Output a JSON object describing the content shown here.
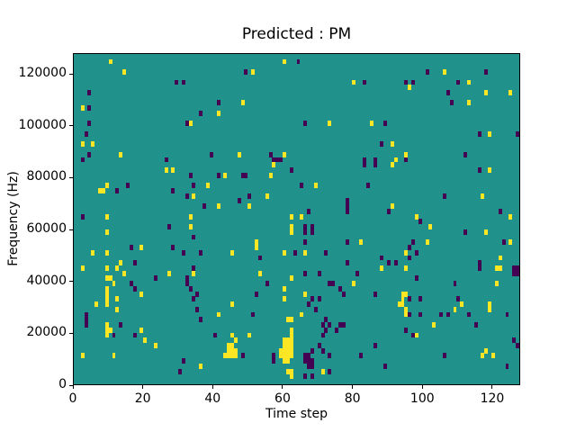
{
  "chart_data": {
    "type": "heatmap",
    "title": "Predicted : PM",
    "xlabel": "Time step",
    "ylabel": "Frequency (Hz)",
    "xlim": [
      0,
      128
    ],
    "ylim": [
      0,
      128000
    ],
    "x_ticks": [
      0,
      20,
      40,
      60,
      80,
      100,
      120
    ],
    "y_ticks": [
      0,
      20000,
      40000,
      60000,
      80000,
      100000,
      120000
    ],
    "grid": {
      "cols": 128,
      "rows": 64
    },
    "colormap": "viridis",
    "colors": {
      "background": "#21918c",
      "yellow": "#fde725",
      "purple": "#440154",
      "spine": "#000000",
      "figure_bg": "#ffffff"
    },
    "cells": {
      "yellow": [
        [
          10,
          62
        ],
        [
          14,
          60
        ],
        [
          2,
          53
        ],
        [
          2,
          46
        ],
        [
          5,
          46
        ],
        [
          13,
          44
        ],
        [
          60,
          62
        ],
        [
          51,
          60
        ],
        [
          48,
          54
        ],
        [
          41,
          52
        ],
        [
          33,
          50
        ],
        [
          47,
          44
        ],
        [
          60,
          44
        ],
        [
          80,
          58
        ],
        [
          73,
          50
        ],
        [
          85,
          50
        ],
        [
          91,
          46
        ],
        [
          95,
          44
        ],
        [
          92,
          43
        ],
        [
          106,
          60
        ],
        [
          96,
          57
        ],
        [
          113,
          58
        ],
        [
          118,
          56
        ],
        [
          125,
          56
        ],
        [
          113,
          54
        ],
        [
          119,
          48
        ],
        [
          26,
          41
        ],
        [
          28,
          41
        ],
        [
          9,
          38
        ],
        [
          7,
          37
        ],
        [
          8,
          37
        ],
        [
          9,
          32
        ],
        [
          9,
          29
        ],
        [
          19,
          26
        ],
        [
          5,
          25
        ],
        [
          9,
          25
        ],
        [
          2,
          22
        ],
        [
          9,
          22
        ],
        [
          13,
          23
        ],
        [
          14,
          21
        ],
        [
          57,
          42
        ],
        [
          38,
          38
        ],
        [
          43,
          40
        ],
        [
          56,
          40
        ],
        [
          34,
          36
        ],
        [
          55,
          36
        ],
        [
          41,
          34
        ],
        [
          50,
          34
        ],
        [
          33,
          32
        ],
        [
          33,
          30
        ],
        [
          62,
          32
        ],
        [
          65,
          32
        ],
        [
          62,
          30
        ],
        [
          62,
          29
        ],
        [
          52,
          27
        ],
        [
          52,
          26
        ],
        [
          60,
          25
        ],
        [
          45,
          25
        ],
        [
          53,
          21
        ],
        [
          91,
          42
        ],
        [
          69,
          38
        ],
        [
          91,
          34
        ],
        [
          82,
          27
        ],
        [
          95,
          25
        ],
        [
          95,
          22
        ],
        [
          88,
          22
        ],
        [
          66,
          25
        ],
        [
          119,
          41
        ],
        [
          117,
          36
        ],
        [
          98,
          32
        ],
        [
          102,
          30
        ],
        [
          125,
          32
        ],
        [
          118,
          29
        ],
        [
          101,
          27
        ],
        [
          125,
          27
        ],
        [
          122,
          24
        ],
        [
          121,
          22
        ],
        [
          122,
          22
        ],
        [
          12,
          22
        ],
        [
          9,
          20
        ],
        [
          10,
          20
        ],
        [
          11,
          19
        ],
        [
          27,
          21
        ],
        [
          19,
          17
        ],
        [
          9,
          18
        ],
        [
          9,
          17
        ],
        [
          9,
          16
        ],
        [
          9,
          15
        ],
        [
          6,
          15
        ],
        [
          12,
          16
        ],
        [
          12,
          14
        ],
        [
          9,
          11
        ],
        [
          9,
          10
        ],
        [
          10,
          10
        ],
        [
          9,
          9
        ],
        [
          19,
          10
        ],
        [
          20,
          8
        ],
        [
          23,
          7
        ],
        [
          2,
          5
        ],
        [
          11,
          5
        ],
        [
          34,
          21
        ],
        [
          62,
          20
        ],
        [
          60,
          18
        ],
        [
          60,
          16
        ],
        [
          45,
          15
        ],
        [
          41,
          13
        ],
        [
          65,
          13
        ],
        [
          45,
          9
        ],
        [
          46,
          8
        ],
        [
          50,
          9
        ],
        [
          36,
          3
        ],
        [
          44,
          7
        ],
        [
          45,
          7
        ],
        [
          44,
          6
        ],
        [
          45,
          6
        ],
        [
          46,
          6
        ],
        [
          43,
          5
        ],
        [
          44,
          5
        ],
        [
          45,
          5
        ],
        [
          46,
          5
        ],
        [
          61,
          12
        ],
        [
          62,
          12
        ],
        [
          62,
          10
        ],
        [
          62,
          9
        ],
        [
          60,
          8
        ],
        [
          61,
          8
        ],
        [
          62,
          8
        ],
        [
          60,
          7
        ],
        [
          61,
          7
        ],
        [
          62,
          7
        ],
        [
          59,
          6
        ],
        [
          60,
          6
        ],
        [
          61,
          6
        ],
        [
          62,
          6
        ],
        [
          59,
          5
        ],
        [
          60,
          5
        ],
        [
          61,
          5
        ],
        [
          62,
          5
        ],
        [
          60,
          4
        ],
        [
          61,
          4
        ],
        [
          61,
          2
        ],
        [
          62,
          2
        ],
        [
          62,
          1
        ],
        [
          80,
          19
        ],
        [
          66,
          17
        ],
        [
          94,
          17
        ],
        [
          95,
          17
        ],
        [
          94,
          16
        ],
        [
          93,
          15
        ],
        [
          94,
          15
        ],
        [
          95,
          14
        ],
        [
          95,
          13
        ],
        [
          71,
          2
        ],
        [
          121,
          19
        ],
        [
          111,
          15
        ],
        [
          109,
          14
        ],
        [
          119,
          15
        ],
        [
          119,
          14
        ],
        [
          103,
          11
        ],
        [
          98,
          9
        ],
        [
          118,
          6
        ],
        [
          117,
          5
        ],
        [
          120,
          5
        ]
      ],
      "purple": [
        [
          29,
          58
        ],
        [
          31,
          58
        ],
        [
          4,
          56
        ],
        [
          4,
          53
        ],
        [
          4,
          50
        ],
        [
          3,
          48
        ],
        [
          4,
          44
        ],
        [
          26,
          43
        ],
        [
          64,
          62
        ],
        [
          49,
          60
        ],
        [
          41,
          54
        ],
        [
          36,
          52
        ],
        [
          32,
          50
        ],
        [
          39,
          44
        ],
        [
          56,
          44
        ],
        [
          57,
          43
        ],
        [
          83,
          58
        ],
        [
          95,
          58
        ],
        [
          97,
          58
        ],
        [
          66,
          50
        ],
        [
          89,
          50
        ],
        [
          88,
          46
        ],
        [
          83,
          43
        ],
        [
          86,
          43
        ],
        [
          101,
          60
        ],
        [
          118,
          60
        ],
        [
          110,
          58
        ],
        [
          107,
          56
        ],
        [
          108,
          54
        ],
        [
          116,
          48
        ],
        [
          127,
          48
        ],
        [
          112,
          44
        ],
        [
          2,
          43
        ],
        [
          15,
          38
        ],
        [
          12,
          37
        ],
        [
          28,
          37
        ],
        [
          2,
          32
        ],
        [
          27,
          30
        ],
        [
          16,
          26
        ],
        [
          28,
          26
        ],
        [
          17,
          23
        ],
        [
          31,
          25
        ],
        [
          58,
          43
        ],
        [
          59,
          43
        ],
        [
          62,
          41
        ],
        [
          33,
          40
        ],
        [
          34,
          38
        ],
        [
          41,
          40
        ],
        [
          48,
          40
        ],
        [
          49,
          40
        ],
        [
          32,
          36
        ],
        [
          50,
          36
        ],
        [
          47,
          35
        ],
        [
          37,
          34
        ],
        [
          34,
          28
        ],
        [
          36,
          25
        ],
        [
          34,
          22
        ],
        [
          53,
          24
        ],
        [
          63,
          25
        ],
        [
          83,
          42
        ],
        [
          86,
          42
        ],
        [
          95,
          43
        ],
        [
          65,
          38
        ],
        [
          84,
          38
        ],
        [
          78,
          35
        ],
        [
          78,
          34
        ],
        [
          78,
          33
        ],
        [
          90,
          33
        ],
        [
          67,
          33
        ],
        [
          66,
          30
        ],
        [
          68,
          30
        ],
        [
          68,
          29
        ],
        [
          66,
          29
        ],
        [
          66,
          27
        ],
        [
          78,
          27
        ],
        [
          72,
          25
        ],
        [
          78,
          23
        ],
        [
          88,
          24
        ],
        [
          90,
          23
        ],
        [
          92,
          23
        ],
        [
          116,
          41
        ],
        [
          106,
          36
        ],
        [
          99,
          31
        ],
        [
          122,
          33
        ],
        [
          112,
          29
        ],
        [
          97,
          27
        ],
        [
          98,
          25
        ],
        [
          123,
          27
        ],
        [
          116,
          23
        ],
        [
          126,
          22
        ],
        [
          127,
          22
        ],
        [
          126,
          21
        ],
        [
          127,
          21
        ],
        [
          96,
          26
        ],
        [
          96,
          24
        ],
        [
          23,
          20
        ],
        [
          16,
          19
        ],
        [
          17,
          18
        ],
        [
          3,
          13
        ],
        [
          3,
          12
        ],
        [
          3,
          11
        ],
        [
          13,
          11
        ],
        [
          11,
          9
        ],
        [
          17,
          9
        ],
        [
          31,
          4
        ],
        [
          30,
          2
        ],
        [
          32,
          20
        ],
        [
          32,
          19
        ],
        [
          33,
          18
        ],
        [
          35,
          17
        ],
        [
          34,
          16
        ],
        [
          35,
          14
        ],
        [
          36,
          12
        ],
        [
          55,
          19
        ],
        [
          52,
          17
        ],
        [
          51,
          13
        ],
        [
          40,
          9
        ],
        [
          48,
          5
        ],
        [
          57,
          5
        ],
        [
          57,
          4
        ],
        [
          66,
          21
        ],
        [
          70,
          21
        ],
        [
          81,
          21
        ],
        [
          73,
          19
        ],
        [
          74,
          19
        ],
        [
          76,
          18
        ],
        [
          68,
          16
        ],
        [
          70,
          16
        ],
        [
          77,
          17
        ],
        [
          86,
          17
        ],
        [
          67,
          15
        ],
        [
          69,
          14
        ],
        [
          72,
          12
        ],
        [
          71,
          11
        ],
        [
          73,
          11
        ],
        [
          72,
          10
        ],
        [
          75,
          10
        ],
        [
          76,
          11
        ],
        [
          77,
          11
        ],
        [
          71,
          9
        ],
        [
          70,
          7
        ],
        [
          71,
          6
        ],
        [
          68,
          6
        ],
        [
          67,
          5
        ],
        [
          66,
          5
        ],
        [
          66,
          4
        ],
        [
          67,
          4
        ],
        [
          68,
          4
        ],
        [
          67,
          3
        ],
        [
          68,
          3
        ],
        [
          73,
          5
        ],
        [
          89,
          3
        ],
        [
          95,
          10
        ],
        [
          97,
          9
        ],
        [
          73,
          2
        ],
        [
          68,
          1
        ],
        [
          66,
          1
        ],
        [
          82,
          5
        ],
        [
          86,
          7
        ],
        [
          116,
          22
        ],
        [
          98,
          20
        ],
        [
          109,
          19
        ],
        [
          96,
          16
        ],
        [
          99,
          16
        ],
        [
          110,
          16
        ],
        [
          107,
          13
        ],
        [
          105,
          13
        ],
        [
          99,
          13
        ],
        [
          96,
          13
        ],
        [
          113,
          13
        ],
        [
          115,
          11
        ],
        [
          124,
          13
        ],
        [
          126,
          8
        ],
        [
          127,
          7
        ],
        [
          106,
          5
        ],
        [
          124,
          3
        ]
      ]
    }
  }
}
